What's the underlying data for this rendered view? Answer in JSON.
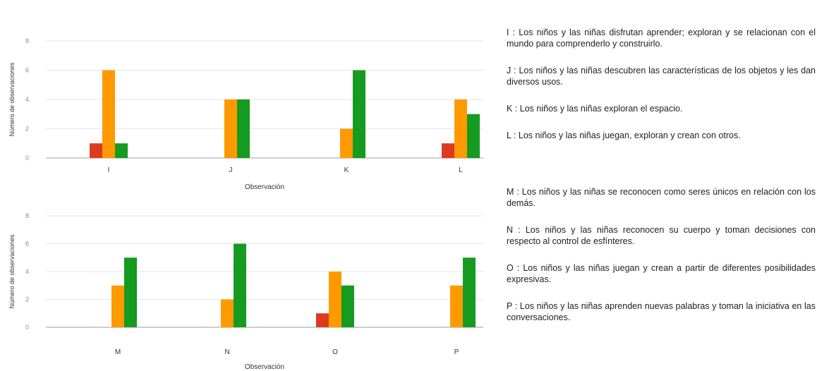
{
  "colors": {
    "red": "#db3b1f",
    "orange": "#ff9900",
    "green": "#159b1f"
  },
  "chart_data": [
    {
      "type": "bar",
      "categories": [
        "I",
        "J",
        "K",
        "L"
      ],
      "series": [
        {
          "values": [
            1,
            0,
            0,
            1
          ]
        },
        {
          "values": [
            6,
            4,
            2,
            4
          ]
        },
        {
          "values": [
            1,
            4,
            6,
            3
          ]
        }
      ],
      "xlabel": "Observación",
      "ylabel": "Número de observaciones",
      "ylim": [
        0,
        8
      ],
      "yticks": [
        "0",
        "2",
        "4",
        "6",
        "8"
      ],
      "grid": true
    },
    {
      "type": "bar",
      "categories": [
        "M",
        "N",
        "O",
        "P"
      ],
      "series": [
        {
          "values": [
            0,
            0,
            1,
            0
          ]
        },
        {
          "values": [
            3,
            2,
            4,
            3
          ]
        },
        {
          "values": [
            5,
            6,
            3,
            5
          ]
        }
      ],
      "xlabel": "Observación",
      "ylabel": "Número de observaciones",
      "ylim": [
        0,
        8
      ],
      "yticks": [
        "0",
        "2",
        "4",
        "6",
        "8"
      ],
      "grid": true
    }
  ],
  "legend": {
    "I": "I : Los niños y las niñas disfrutan aprender; exploran y se relacionan con el mundo para comprenderlo y construirlo.",
    "J": "J : Los niños y las niñas descubren las características de los objetos y les dan diversos usos.",
    "K": "K : Los niños y las niñas exploran el espacio.",
    "L": "L : Los niños y las niñas juegan, exploran y crean con otros.",
    "M": "M : Los niños y las niñas se reconocen como seres únicos en relación con los demás.",
    "N": "N : Los niños y las niñas reconocen su cuerpo y toman decisiones con respecto al control de esfínteres.",
    "O": "O : Los niños y las niñas juegan y crean a partir de diferentes posibilidades expresivas.",
    "P": "P : Los niños y las niñas aprenden nuevas palabras y toman la iniciativa en las conversaciones."
  }
}
